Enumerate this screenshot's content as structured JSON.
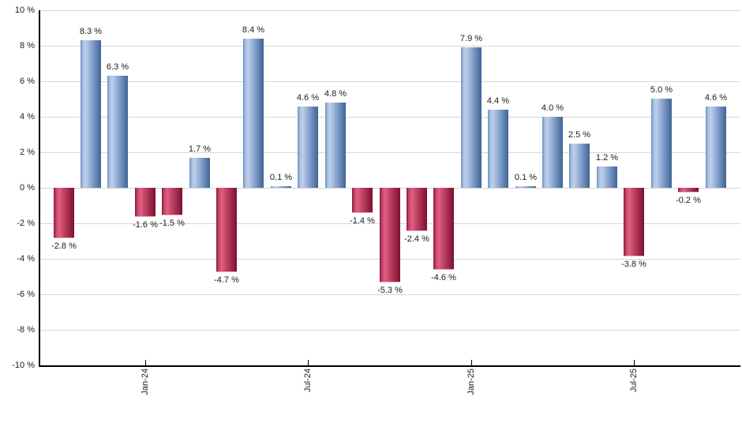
{
  "chart": {
    "background_color": "#ffffff",
    "title": "",
    "legend": "none"
  },
  "chart_data": {
    "type": "bar",
    "title": "",
    "xlabel": "",
    "ylabel": "",
    "values": [
      -2.8,
      8.3,
      6.3,
      -1.6,
      -1.5,
      1.7,
      -4.7,
      8.4,
      0.1,
      4.6,
      4.8,
      -1.4,
      -5.3,
      -2.4,
      -4.6,
      7.9,
      4.4,
      0.1,
      4.0,
      2.5,
      1.2,
      -3.8,
      5.0,
      -0.2,
      4.6
    ],
    "value_label_suffix": " %",
    "x_ticks": [
      {
        "label": "Jan-24",
        "bar_index": 3
      },
      {
        "label": "Jul-24",
        "bar_index": 9
      },
      {
        "label": "Jan-25",
        "bar_index": 15
      },
      {
        "label": "Jul-25",
        "bar_index": 21
      }
    ],
    "y_axis": {
      "min": -10,
      "max": 10,
      "step": 2,
      "suffix": " %",
      "tick_labels": [
        "10 %",
        "8 %",
        "6 %",
        "4 %",
        "2 %",
        "0 %",
        "-2 %",
        "-4 %",
        "-6 %",
        "-8 %",
        "-10 %"
      ]
    },
    "grid": true,
    "legend_position": "none",
    "colors": {
      "positive_bar": "#6d8ec0",
      "positive_highlight": "#bdcfe9",
      "positive_edge": "#40639b",
      "negative_bar": "#c24566",
      "negative_highlight": "#e25e82",
      "negative_edge": "#7c1031",
      "gridline": "#d6d6d6",
      "axis": "#000000",
      "label_text": "#1b1b1b"
    }
  }
}
